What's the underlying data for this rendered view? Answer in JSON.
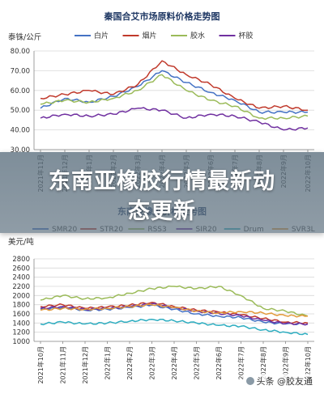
{
  "headline": {
    "line1": "东南亚橡胶行情最新动",
    "line2": "态更新"
  },
  "watermark": "头条 @胶友通",
  "chart_data": [
    {
      "type": "line",
      "title": "秦国合艾市场原料价格走势图",
      "ylabel": "泰铢/公斤",
      "ylim": [
        30,
        80
      ],
      "yticks": [
        "30.00",
        "40.00",
        "50.00",
        "60.00",
        "70.00",
        "80.00"
      ],
      "categories": [
        "2021年11月",
        "2021年12月",
        "2022年1月",
        "2022年2月",
        "2022年3月",
        "2022年4月",
        "2022年5月",
        "2022年6月",
        "2022年7月",
        "2022年8月",
        "2022年9月",
        "2022年10月"
      ],
      "legend_position": "top",
      "series": [
        {
          "name": "白片",
          "color": "#4472c4",
          "values": [
            51,
            56,
            54,
            57,
            62,
            70,
            64,
            59,
            55,
            49,
            49,
            49
          ]
        },
        {
          "name": "烟片",
          "color": "#c0392b",
          "values": [
            56,
            58,
            60,
            58,
            63,
            75,
            68,
            63,
            56,
            51,
            52,
            50
          ]
        },
        {
          "name": "胶水",
          "color": "#9bbb59",
          "values": [
            53,
            55,
            54,
            56,
            60,
            68,
            60,
            55,
            52,
            46,
            46,
            47
          ]
        },
        {
          "name": "杯胶",
          "color": "#7030a0",
          "values": [
            46,
            48,
            47,
            48,
            51,
            50,
            46,
            48,
            47,
            44,
            40,
            41
          ]
        }
      ]
    },
    {
      "type": "line",
      "title": "东南亚橡胶价格走势图",
      "ylabel": "美元/吨",
      "ylim": [
        1000,
        2800
      ],
      "yticks": [
        "1000",
        "1200",
        "1400",
        "1600",
        "1800",
        "2000",
        "2200",
        "2400",
        "2600",
        "2800"
      ],
      "categories": [
        "2021年10月",
        "2021年11月",
        "2021年12月",
        "2022年1月",
        "2022年2月",
        "2022年3月",
        "2022年4月",
        "2022年5月",
        "2022年6月",
        "2022年7月",
        "2022年8月",
        "2022年9月",
        "2022年10月"
      ],
      "legend_position": "top",
      "series": [
        {
          "name": "SMR20",
          "color": "#4472c4",
          "values": [
            1700,
            1740,
            1680,
            1700,
            1740,
            1790,
            1700,
            1600,
            1550,
            1520,
            1420,
            1380,
            1380
          ]
        },
        {
          "name": "STR20",
          "color": "#c0392b",
          "values": [
            1760,
            1800,
            1720,
            1750,
            1790,
            1850,
            1760,
            1680,
            1640,
            1580,
            1500,
            1420,
            1400
          ]
        },
        {
          "name": "RSS3",
          "color": "#9bbb59",
          "values": [
            1900,
            2000,
            1930,
            1950,
            2050,
            2150,
            2200,
            2150,
            2200,
            2000,
            1720,
            1660,
            1550
          ]
        },
        {
          "name": "SIR20",
          "color": "#7030a0",
          "values": [
            1720,
            1760,
            1700,
            1720,
            1760,
            1820,
            1740,
            1660,
            1610,
            1560,
            1460,
            1390,
            1380
          ]
        },
        {
          "name": "Drum",
          "color": "#2eadc0",
          "values": [
            1380,
            1420,
            1380,
            1400,
            1440,
            1480,
            1450,
            1400,
            1350,
            1330,
            1250,
            1200,
            1150
          ]
        },
        {
          "name": "SVR3L",
          "color": "#e39b3c",
          "values": [
            1680,
            1720,
            1700,
            1720,
            1760,
            1800,
            1740,
            1660,
            1620,
            1650,
            1620,
            1560,
            1550
          ]
        }
      ]
    }
  ]
}
